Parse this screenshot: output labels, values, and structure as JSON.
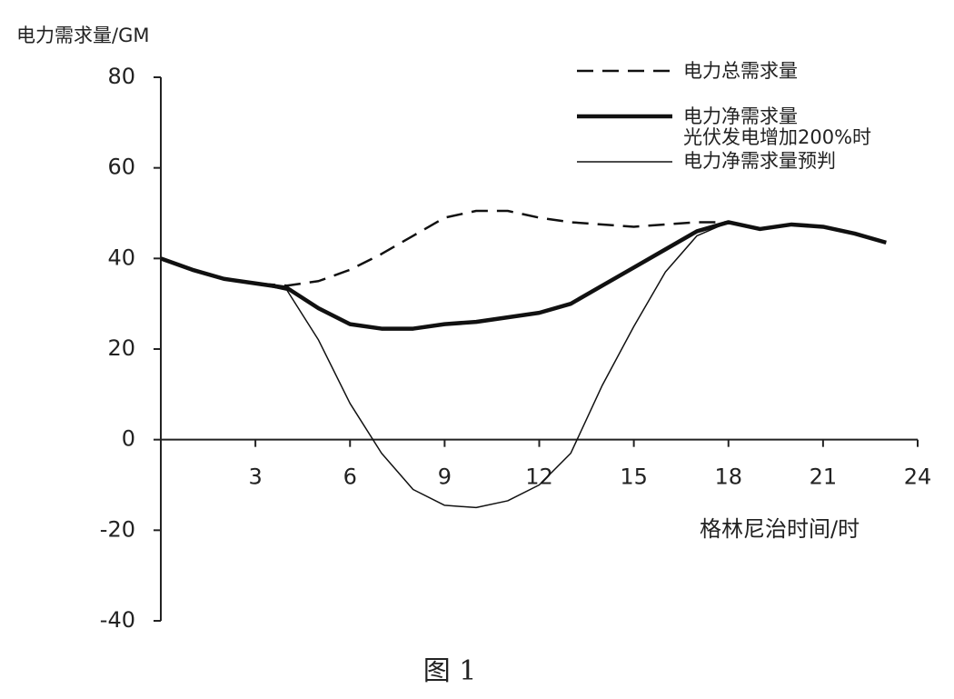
{
  "chart_data": {
    "type": "line",
    "y_label": "电力需求量/GM",
    "x_label": "格林尼治时间/时",
    "caption": "图 1",
    "x": [
      0,
      1,
      2,
      3,
      4,
      5,
      6,
      7,
      8,
      9,
      10,
      11,
      12,
      13,
      14,
      15,
      16,
      17,
      18,
      19,
      20,
      21,
      22,
      23
    ],
    "series": [
      {
        "name": "电力总需求量",
        "color": "#111",
        "style": "dashed",
        "width": 2.5,
        "values": [
          40,
          37.5,
          35.5,
          34.5,
          34,
          35,
          37.5,
          41,
          45,
          49,
          50.5,
          50.5,
          49,
          48,
          47.5,
          47,
          47.5,
          48,
          48,
          46.5,
          47.5,
          47,
          45.5,
          43.5
        ]
      },
      {
        "name": "电力净需求量",
        "color": "#111",
        "style": "solid",
        "width": 4.5,
        "values": [
          40,
          37.5,
          35.5,
          34.5,
          33.5,
          29,
          25.5,
          24.5,
          24.5,
          25.5,
          26,
          27,
          28,
          30,
          34,
          38,
          42,
          46,
          48,
          46.5,
          47.5,
          47,
          45.5,
          43.5
        ]
      },
      {
        "name": "光伏发电增加200%时电力净需求量预判",
        "color": "#111",
        "style": "solid",
        "width": 1.5,
        "values": [
          40,
          37.5,
          35.5,
          34.5,
          33,
          22,
          8,
          -3,
          -11,
          -14.5,
          -15,
          -13.5,
          -10,
          -3,
          12,
          25,
          37,
          45,
          48,
          46.5,
          47.5,
          47,
          45.5,
          43.5
        ]
      }
    ],
    "xlim": [
      0,
      24
    ],
    "xticks": [
      3,
      6,
      9,
      12,
      15,
      18,
      21,
      24
    ],
    "ylim": [
      -40,
      80
    ],
    "yticks": [
      -40,
      -20,
      0,
      20,
      40,
      60,
      80
    ]
  }
}
